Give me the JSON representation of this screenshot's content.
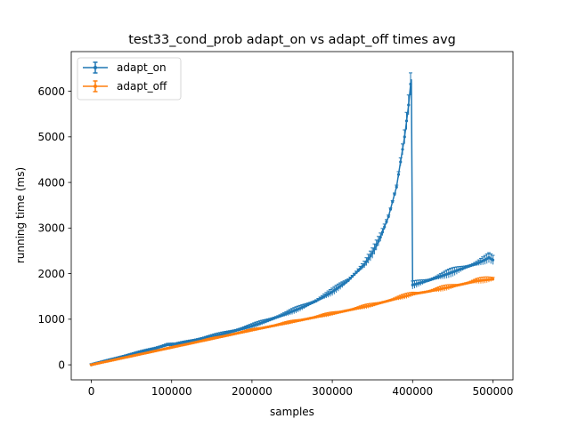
{
  "chart_data": {
    "type": "line",
    "title": "test33_cond_prob adapt_on vs adapt_off times avg",
    "xlabel": "samples",
    "ylabel": "running time (ms)",
    "xlim": [
      -25000,
      525000
    ],
    "ylim": [
      -330,
      6870
    ],
    "xticks": [
      0,
      100000,
      200000,
      300000,
      400000,
      500000
    ],
    "xtick_labels": [
      "0",
      "100000",
      "200000",
      "300000",
      "400000",
      "500000"
    ],
    "yticks": [
      0,
      1000,
      2000,
      3000,
      4000,
      5000,
      6000
    ],
    "ytick_labels": [
      "0",
      "1000",
      "2000",
      "3000",
      "4000",
      "5000",
      "6000"
    ],
    "grid": false,
    "legend_position": "top-left",
    "error_bars": true,
    "series": [
      {
        "name": "adapt_on",
        "color": "#1f77b4",
        "x": [
          0,
          20000,
          40000,
          60000,
          80000,
          95000,
          105000,
          120000,
          140000,
          160000,
          180000,
          200000,
          220000,
          240000,
          260000,
          280000,
          300000,
          320000,
          340000,
          350000,
          360000,
          370000,
          380000,
          385000,
          390000,
          395000,
          398000,
          398500,
          400000,
          420000,
          440000,
          460000,
          480000,
          490000,
          495000,
          500000
        ],
        "y": [
          0,
          90,
          180,
          270,
          360,
          440,
          440,
          500,
          580,
          660,
          750,
          850,
          970,
          1100,
          1240,
          1400,
          1600,
          1850,
          2200,
          2450,
          2800,
          3250,
          3900,
          4450,
          5000,
          5700,
          6250,
          6250,
          1750,
          1850,
          1970,
          2100,
          2220,
          2300,
          2350,
          2300
        ],
        "yerr_max": 250
      },
      {
        "name": "adapt_off",
        "color": "#ff7f0e",
        "x": [
          0,
          50000,
          100000,
          150000,
          200000,
          250000,
          300000,
          350000,
          390000,
          400000,
          420000,
          450000,
          480000,
          500000
        ],
        "y": [
          0,
          190,
          380,
          570,
          760,
          940,
          1120,
          1310,
          1500,
          1550,
          1610,
          1720,
          1840,
          1880
        ],
        "yerr_max": 70
      }
    ]
  }
}
